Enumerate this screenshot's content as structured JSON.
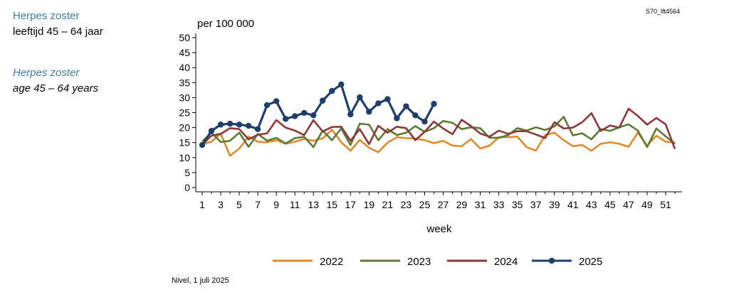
{
  "sidebar": {
    "nl_title": "Herpes zoster",
    "nl_subtitle": "leeftijd 45 – 64 jaar",
    "en_title": "Herpes zoster",
    "en_subtitle": "age 45 – 64 years"
  },
  "figure_code": "S70_lft4564",
  "source": "Nivel, 1 juli 2025",
  "chart_data": {
    "type": "line",
    "ylabel": "per 100 000",
    "xlabel": "week",
    "ylim": [
      0,
      50
    ],
    "yticks": [
      0,
      5,
      10,
      15,
      20,
      25,
      30,
      35,
      40,
      45,
      50
    ],
    "xlim": [
      1,
      52
    ],
    "xticks": [
      1,
      3,
      5,
      7,
      9,
      11,
      13,
      15,
      17,
      19,
      21,
      23,
      25,
      27,
      29,
      31,
      33,
      35,
      37,
      39,
      41,
      43,
      45,
      47,
      49,
      51
    ],
    "legend_position": "bottom",
    "grid": false,
    "series": [
      {
        "name": "2022",
        "color": "#e08a2c",
        "markers": false,
        "x": [
          1,
          2,
          3,
          4,
          5,
          6,
          7,
          8,
          9,
          10,
          11,
          12,
          13,
          14,
          15,
          16,
          17,
          18,
          19,
          20,
          21,
          22,
          23,
          24,
          25,
          26,
          27,
          28,
          29,
          30,
          31,
          32,
          33,
          34,
          35,
          36,
          37,
          38,
          39,
          40,
          41,
          42,
          43,
          44,
          45,
          46,
          47,
          48,
          49,
          50,
          51,
          52
        ],
        "values": [
          14.5,
          15.3,
          18.0,
          10.6,
          13.0,
          17.0,
          15.3,
          15.1,
          15.8,
          14.6,
          15.3,
          16.2,
          15.6,
          16.4,
          19.3,
          15.1,
          12.3,
          15.9,
          13.3,
          11.8,
          15.0,
          16.8,
          16.5,
          16.3,
          15.8,
          14.8,
          15.6,
          14.0,
          13.8,
          16.2,
          13.0,
          14.0,
          16.8,
          16.8,
          17.0,
          13.5,
          12.3,
          17.5,
          18.3,
          15.8,
          13.8,
          14.2,
          12.3,
          14.6,
          15.1,
          14.6,
          13.6,
          18.3,
          14.0,
          17.3,
          15.3,
          15.0
        ]
      },
      {
        "name": "2023",
        "color": "#5d7a35",
        "markers": false,
        "x": [
          1,
          2,
          3,
          4,
          5,
          6,
          7,
          8,
          9,
          10,
          11,
          12,
          13,
          14,
          15,
          16,
          17,
          18,
          19,
          20,
          21,
          22,
          23,
          24,
          25,
          26,
          27,
          28,
          29,
          30,
          31,
          32,
          33,
          34,
          35,
          36,
          37,
          38,
          39,
          40,
          41,
          42,
          43,
          44,
          45,
          46,
          47,
          48,
          49,
          50,
          51,
          52
        ],
        "values": [
          15.4,
          18.3,
          15.2,
          15.6,
          18.3,
          13.6,
          17.9,
          15.6,
          16.6,
          14.7,
          16.5,
          16.9,
          13.5,
          19.0,
          15.8,
          19.7,
          14.2,
          21.3,
          21.0,
          15.8,
          19.5,
          17.5,
          18.3,
          20.5,
          18.6,
          19.8,
          22.2,
          21.6,
          19.5,
          20.1,
          19.8,
          16.6,
          16.6,
          17.5,
          19.8,
          19.0,
          20.1,
          19.2,
          20.4,
          23.6,
          17.4,
          18.1,
          16.1,
          19.5,
          18.9,
          20.1,
          21.1,
          19.0,
          13.5,
          19.7,
          17.1,
          14.6
        ]
      },
      {
        "name": "2024",
        "color": "#8c3838",
        "markers": false,
        "x": [
          1,
          2,
          3,
          4,
          5,
          6,
          7,
          8,
          9,
          10,
          11,
          12,
          13,
          14,
          15,
          16,
          17,
          18,
          19,
          20,
          21,
          22,
          23,
          24,
          25,
          26,
          27,
          28,
          29,
          30,
          31,
          32,
          33,
          34,
          35,
          36,
          37,
          38,
          39,
          40,
          41,
          42,
          43,
          44,
          45,
          46,
          47,
          48,
          49,
          50,
          51,
          52
        ],
        "values": [
          14.3,
          17.3,
          17.9,
          19.8,
          19.5,
          16.1,
          17.6,
          18.1,
          22.5,
          20.0,
          19.0,
          17.5,
          22.5,
          18.7,
          20.2,
          20.3,
          15.6,
          19.5,
          14.5,
          20.6,
          18.3,
          20.3,
          19.8,
          15.8,
          18.6,
          22.0,
          19.7,
          17.8,
          22.6,
          20.5,
          18.0,
          17.0,
          19.0,
          17.9,
          18.8,
          18.8,
          17.7,
          16.5,
          21.8,
          19.7,
          20.0,
          21.8,
          24.8,
          18.9,
          20.7,
          20.0,
          26.3,
          23.9,
          21.0,
          23.2,
          21.1,
          12.9
        ]
      },
      {
        "name": "2025",
        "color": "#1f3f6b",
        "markers": true,
        "x": [
          1,
          2,
          3,
          4,
          5,
          6,
          7,
          8,
          9,
          10,
          11,
          12,
          13,
          14,
          15,
          16,
          17,
          18,
          19,
          20,
          21,
          22,
          23,
          24,
          25,
          26
        ],
        "values": [
          14.2,
          18.9,
          21.0,
          21.3,
          21.0,
          20.6,
          19.5,
          27.5,
          28.8,
          22.9,
          23.8,
          24.9,
          24.1,
          29.0,
          32.2,
          34.4,
          24.4,
          30.1,
          25.3,
          28.1,
          29.5,
          23.1,
          27.1,
          24.1,
          22.0,
          27.9
        ]
      }
    ]
  }
}
